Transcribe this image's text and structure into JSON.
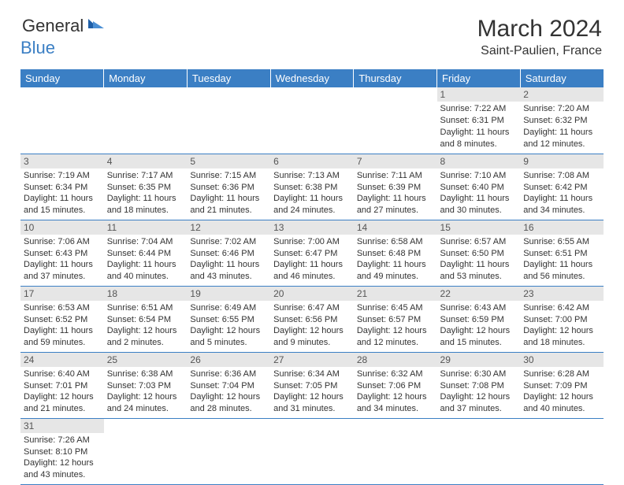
{
  "logo": {
    "general": "General",
    "blue": "Blue"
  },
  "title": "March 2024",
  "location": "Saint-Paulien, France",
  "headers": [
    "Sunday",
    "Monday",
    "Tuesday",
    "Wednesday",
    "Thursday",
    "Friday",
    "Saturday"
  ],
  "colors": {
    "header_bg": "#3b7fc4",
    "header_text": "#ffffff",
    "daynum_bg": "#e6e6e6",
    "daynum_text": "#555555",
    "body_text": "#333333",
    "border": "#3b7fc4"
  },
  "weeks": [
    [
      null,
      null,
      null,
      null,
      null,
      {
        "n": "1",
        "sunrise": "Sunrise: 7:22 AM",
        "sunset": "Sunset: 6:31 PM",
        "day1": "Daylight: 11 hours",
        "day2": "and 8 minutes."
      },
      {
        "n": "2",
        "sunrise": "Sunrise: 7:20 AM",
        "sunset": "Sunset: 6:32 PM",
        "day1": "Daylight: 11 hours",
        "day2": "and 12 minutes."
      }
    ],
    [
      {
        "n": "3",
        "sunrise": "Sunrise: 7:19 AM",
        "sunset": "Sunset: 6:34 PM",
        "day1": "Daylight: 11 hours",
        "day2": "and 15 minutes."
      },
      {
        "n": "4",
        "sunrise": "Sunrise: 7:17 AM",
        "sunset": "Sunset: 6:35 PM",
        "day1": "Daylight: 11 hours",
        "day2": "and 18 minutes."
      },
      {
        "n": "5",
        "sunrise": "Sunrise: 7:15 AM",
        "sunset": "Sunset: 6:36 PM",
        "day1": "Daylight: 11 hours",
        "day2": "and 21 minutes."
      },
      {
        "n": "6",
        "sunrise": "Sunrise: 7:13 AM",
        "sunset": "Sunset: 6:38 PM",
        "day1": "Daylight: 11 hours",
        "day2": "and 24 minutes."
      },
      {
        "n": "7",
        "sunrise": "Sunrise: 7:11 AM",
        "sunset": "Sunset: 6:39 PM",
        "day1": "Daylight: 11 hours",
        "day2": "and 27 minutes."
      },
      {
        "n": "8",
        "sunrise": "Sunrise: 7:10 AM",
        "sunset": "Sunset: 6:40 PM",
        "day1": "Daylight: 11 hours",
        "day2": "and 30 minutes."
      },
      {
        "n": "9",
        "sunrise": "Sunrise: 7:08 AM",
        "sunset": "Sunset: 6:42 PM",
        "day1": "Daylight: 11 hours",
        "day2": "and 34 minutes."
      }
    ],
    [
      {
        "n": "10",
        "sunrise": "Sunrise: 7:06 AM",
        "sunset": "Sunset: 6:43 PM",
        "day1": "Daylight: 11 hours",
        "day2": "and 37 minutes."
      },
      {
        "n": "11",
        "sunrise": "Sunrise: 7:04 AM",
        "sunset": "Sunset: 6:44 PM",
        "day1": "Daylight: 11 hours",
        "day2": "and 40 minutes."
      },
      {
        "n": "12",
        "sunrise": "Sunrise: 7:02 AM",
        "sunset": "Sunset: 6:46 PM",
        "day1": "Daylight: 11 hours",
        "day2": "and 43 minutes."
      },
      {
        "n": "13",
        "sunrise": "Sunrise: 7:00 AM",
        "sunset": "Sunset: 6:47 PM",
        "day1": "Daylight: 11 hours",
        "day2": "and 46 minutes."
      },
      {
        "n": "14",
        "sunrise": "Sunrise: 6:58 AM",
        "sunset": "Sunset: 6:48 PM",
        "day1": "Daylight: 11 hours",
        "day2": "and 49 minutes."
      },
      {
        "n": "15",
        "sunrise": "Sunrise: 6:57 AM",
        "sunset": "Sunset: 6:50 PM",
        "day1": "Daylight: 11 hours",
        "day2": "and 53 minutes."
      },
      {
        "n": "16",
        "sunrise": "Sunrise: 6:55 AM",
        "sunset": "Sunset: 6:51 PM",
        "day1": "Daylight: 11 hours",
        "day2": "and 56 minutes."
      }
    ],
    [
      {
        "n": "17",
        "sunrise": "Sunrise: 6:53 AM",
        "sunset": "Sunset: 6:52 PM",
        "day1": "Daylight: 11 hours",
        "day2": "and 59 minutes."
      },
      {
        "n": "18",
        "sunrise": "Sunrise: 6:51 AM",
        "sunset": "Sunset: 6:54 PM",
        "day1": "Daylight: 12 hours",
        "day2": "and 2 minutes."
      },
      {
        "n": "19",
        "sunrise": "Sunrise: 6:49 AM",
        "sunset": "Sunset: 6:55 PM",
        "day1": "Daylight: 12 hours",
        "day2": "and 5 minutes."
      },
      {
        "n": "20",
        "sunrise": "Sunrise: 6:47 AM",
        "sunset": "Sunset: 6:56 PM",
        "day1": "Daylight: 12 hours",
        "day2": "and 9 minutes."
      },
      {
        "n": "21",
        "sunrise": "Sunrise: 6:45 AM",
        "sunset": "Sunset: 6:57 PM",
        "day1": "Daylight: 12 hours",
        "day2": "and 12 minutes."
      },
      {
        "n": "22",
        "sunrise": "Sunrise: 6:43 AM",
        "sunset": "Sunset: 6:59 PM",
        "day1": "Daylight: 12 hours",
        "day2": "and 15 minutes."
      },
      {
        "n": "23",
        "sunrise": "Sunrise: 6:42 AM",
        "sunset": "Sunset: 7:00 PM",
        "day1": "Daylight: 12 hours",
        "day2": "and 18 minutes."
      }
    ],
    [
      {
        "n": "24",
        "sunrise": "Sunrise: 6:40 AM",
        "sunset": "Sunset: 7:01 PM",
        "day1": "Daylight: 12 hours",
        "day2": "and 21 minutes."
      },
      {
        "n": "25",
        "sunrise": "Sunrise: 6:38 AM",
        "sunset": "Sunset: 7:03 PM",
        "day1": "Daylight: 12 hours",
        "day2": "and 24 minutes."
      },
      {
        "n": "26",
        "sunrise": "Sunrise: 6:36 AM",
        "sunset": "Sunset: 7:04 PM",
        "day1": "Daylight: 12 hours",
        "day2": "and 28 minutes."
      },
      {
        "n": "27",
        "sunrise": "Sunrise: 6:34 AM",
        "sunset": "Sunset: 7:05 PM",
        "day1": "Daylight: 12 hours",
        "day2": "and 31 minutes."
      },
      {
        "n": "28",
        "sunrise": "Sunrise: 6:32 AM",
        "sunset": "Sunset: 7:06 PM",
        "day1": "Daylight: 12 hours",
        "day2": "and 34 minutes."
      },
      {
        "n": "29",
        "sunrise": "Sunrise: 6:30 AM",
        "sunset": "Sunset: 7:08 PM",
        "day1": "Daylight: 12 hours",
        "day2": "and 37 minutes."
      },
      {
        "n": "30",
        "sunrise": "Sunrise: 6:28 AM",
        "sunset": "Sunset: 7:09 PM",
        "day1": "Daylight: 12 hours",
        "day2": "and 40 minutes."
      }
    ],
    [
      {
        "n": "31",
        "sunrise": "Sunrise: 7:26 AM",
        "sunset": "Sunset: 8:10 PM",
        "day1": "Daylight: 12 hours",
        "day2": "and 43 minutes."
      },
      null,
      null,
      null,
      null,
      null,
      null
    ]
  ]
}
